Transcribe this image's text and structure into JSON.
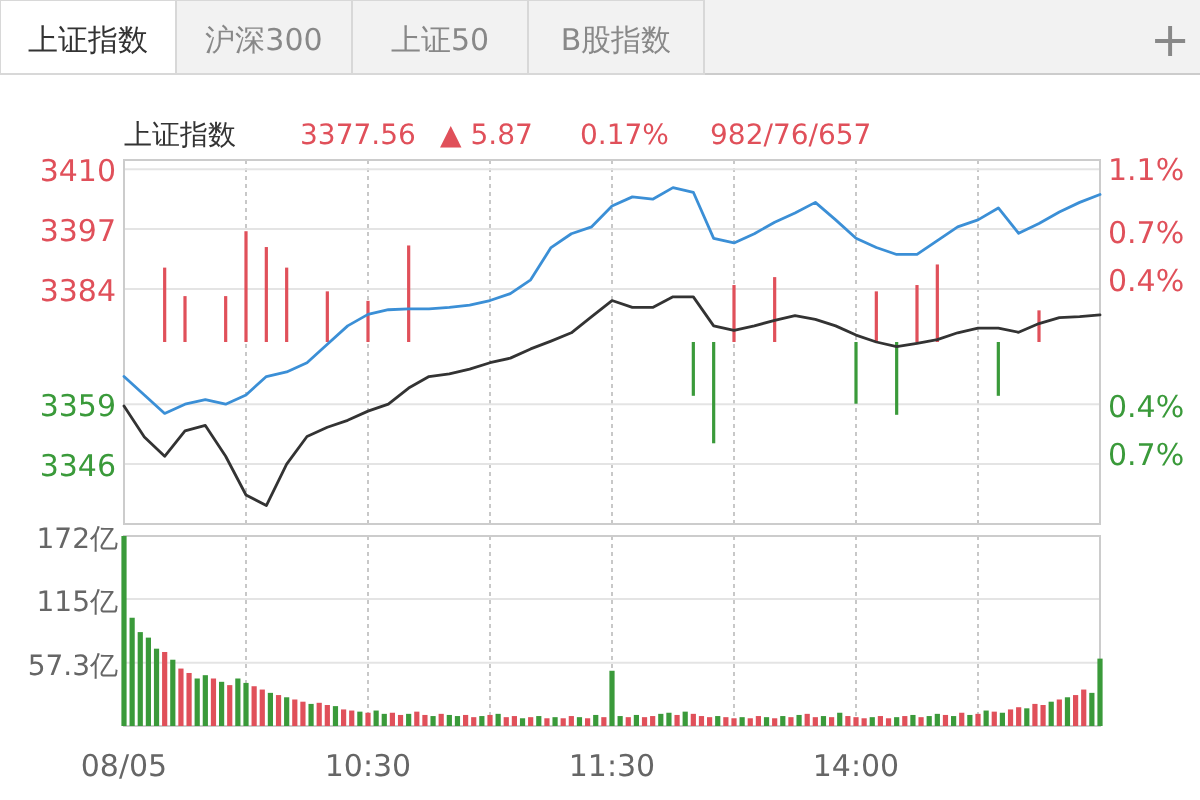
{
  "chart_data": [
    {
      "type": "other",
      "annotations": [
        "上证指数",
        "沪深300",
        "上证50",
        "B股指数",
        "+"
      ]
    },
    {
      "type": "line",
      "title": "上证指数",
      "annotations": [
        "3377.56",
        "▲ 5.87",
        "0.17%",
        "982/76/657"
      ],
      "categories": [
        null,
        null,
        null,
        null,
        null,
        null,
        null,
        null,
        null,
        null,
        null,
        null,
        null,
        null,
        null,
        null,
        null,
        null,
        null,
        null,
        null,
        null,
        null,
        null,
        null,
        null,
        null,
        null,
        null,
        null,
        null,
        null,
        null,
        null,
        null,
        null,
        null,
        null,
        null,
        null,
        null,
        null,
        null,
        null,
        null,
        null,
        null,
        null,
        null
      ],
      "ylim": [
        3333,
        3412
      ],
      "yticks": [
        3410,
        3397,
        3384,
        3359,
        3346
      ],
      "y2lim": [
        -1.15,
        1.15
      ],
      "y2ticks": [
        {
          "value": 1.1,
          "label": "1.1%"
        },
        {
          "value": 0.7,
          "label": "0.7%"
        },
        {
          "value": 0.4,
          "label": "0.4%"
        },
        {
          "value": -0.4,
          "label": "0.4%"
        },
        {
          "value": -0.7,
          "label": "0.7%"
        }
      ],
      "grid": true,
      "series": [
        {
          "type": "bar",
          "axis": "y2",
          "colors": [
            null,
            null,
            "#e0505a",
            "#e0505a",
            null,
            "#e0505a",
            "#e0505a",
            "#e0505a",
            "#e0505a",
            null,
            "#e0505a",
            null,
            "#e0505a",
            null,
            "#e0505a",
            null,
            null,
            null,
            null,
            null,
            null,
            null,
            null,
            null,
            null,
            null,
            null,
            null,
            "#3a9a3a",
            "#3a9a3a",
            "#e0505a",
            null,
            "#e0505a",
            null,
            null,
            null,
            "#3a9a3a",
            "#e0505a",
            "#3a9a3a",
            "#e0505a",
            "#e0505a",
            null,
            null,
            "#3a9a3a",
            null,
            "#e0505a",
            null,
            null,
            null
          ],
          "values": [
            null,
            null,
            0.47,
            0.29,
            null,
            0.29,
            0.7,
            0.6,
            0.47,
            null,
            0.32,
            null,
            0.26,
            null,
            0.61,
            null,
            null,
            null,
            null,
            null,
            null,
            null,
            null,
            null,
            null,
            null,
            null,
            null,
            -0.34,
            -0.64,
            0.36,
            null,
            0.41,
            null,
            null,
            null,
            -0.39,
            0.32,
            -0.46,
            0.36,
            0.49,
            null,
            null,
            -0.34,
            null,
            0.2,
            null,
            null,
            null
          ]
        },
        {
          "type": "line",
          "color": "#333333",
          "values": [
            3358.6,
            3351.9,
            3347.7,
            3353.2,
            3354.4,
            3347.7,
            3339.3,
            3337,
            3346,
            3352,
            3354,
            3355.5,
            3357.5,
            3359,
            3362.5,
            3365,
            3365.6,
            3366.6,
            3368,
            3369,
            3371,
            3372.7,
            3374.5,
            3378,
            3381.5,
            3380,
            3380,
            3382.3,
            3382.3,
            3376,
            3375,
            3376,
            3377.2,
            3378.2,
            3377.4,
            3376,
            3374,
            3372.5,
            3371.5,
            3372.2,
            3373,
            3374.5,
            3375.5,
            3375.5,
            3374.6,
            3376.5,
            3377.8,
            3378,
            3378.4
          ]
        },
        {
          "type": "line",
          "color": "#3b8fd6",
          "values": [
            3365,
            3361,
            3357,
            3359,
            3360,
            3359,
            3361,
            3365,
            3366,
            3368,
            3372,
            3376,
            3378.5,
            3379.5,
            3379.7,
            3379.7,
            3380,
            3380.5,
            3381.5,
            3383,
            3386,
            3393,
            3396,
            3397.5,
            3402,
            3404,
            3403.5,
            3406,
            3405,
            3395,
            3394,
            3396,
            3398.5,
            3400.5,
            3402.8,
            3399,
            3395,
            3393,
            3391.5,
            3391.5,
            3394.5,
            3397.5,
            3399,
            3401.6,
            3396.1,
            3398.2,
            3400.7,
            3402.8,
            3404.5
          ]
        }
      ]
    },
    {
      "type": "bar",
      "categories": [
        "08/05",
        null,
        null,
        null,
        null,
        null,
        null,
        null,
        null,
        null,
        null,
        null,
        null,
        null,
        null,
        null,
        null,
        null,
        null,
        null,
        null,
        null,
        null,
        null,
        null,
        null,
        null,
        null,
        null,
        null,
        "10:30",
        null,
        null,
        null,
        null,
        null,
        null,
        null,
        null,
        null,
        null,
        null,
        null,
        null,
        null,
        null,
        null,
        null,
        null,
        null,
        null,
        null,
        null,
        null,
        null,
        null,
        null,
        null,
        null,
        null,
        "11:30",
        null,
        null,
        null,
        null,
        null,
        null,
        null,
        null,
        null,
        null,
        null,
        null,
        null,
        null,
        null,
        null,
        null,
        null,
        null,
        null,
        null,
        null,
        null,
        null,
        null,
        null,
        null,
        null,
        null,
        "14:00",
        null,
        null,
        null,
        null,
        null,
        null,
        null,
        null,
        null,
        null,
        null,
        null,
        null,
        null,
        null,
        null,
        null,
        null,
        null,
        null,
        null,
        null,
        null,
        null,
        null,
        null,
        null,
        null,
        null,
        null
      ],
      "ylim": [
        0,
        172
      ],
      "yticks": [
        {
          "value": 57.3,
          "label": "57.3亿"
        },
        {
          "value": 115,
          "label": "115亿"
        },
        {
          "value": 172,
          "label": "172亿"
        }
      ],
      "grid": true,
      "series": [
        {
          "values": [
            172,
            98,
            85,
            80,
            70,
            67,
            60,
            52,
            48,
            43,
            46,
            43,
            40,
            37,
            43,
            39,
            36,
            33,
            30,
            28,
            26,
            24,
            22,
            20,
            21,
            19,
            18,
            15,
            14,
            13,
            12,
            14,
            11,
            12,
            10,
            11,
            13,
            10,
            9,
            11,
            10,
            9,
            10,
            8,
            9,
            10,
            11,
            8,
            9,
            7,
            8,
            9,
            7,
            8,
            7,
            9,
            8,
            7,
            10,
            8,
            50,
            9,
            8,
            10,
            8,
            9,
            11,
            12,
            10,
            13,
            11,
            9,
            8,
            9,
            8,
            7,
            8,
            7,
            9,
            8,
            7,
            9,
            8,
            10,
            11,
            8,
            9,
            8,
            12,
            9,
            8,
            7,
            8,
            9,
            7,
            8,
            9,
            10,
            8,
            9,
            11,
            10,
            9,
            12,
            10,
            11,
            14,
            13,
            12,
            15,
            17,
            16,
            20,
            19,
            22,
            24,
            26,
            28,
            33,
            30,
            61
          ],
          "colors": [
            "#3a9a3a",
            "#3a9a3a",
            "#3a9a3a",
            "#3a9a3a",
            "#3a9a3a",
            "#e0505a",
            "#3a9a3a",
            "#e0505a",
            "#e0505a",
            "#3a9a3a",
            "#3a9a3a",
            "#e0505a",
            "#3a9a3a",
            "#e0505a",
            "#3a9a3a",
            "#3a9a3a",
            "#e0505a",
            "#e0505a",
            "#3a9a3a",
            "#e0505a",
            "#3a9a3a",
            "#e0505a",
            "#e0505a",
            "#3a9a3a",
            "#e0505a",
            "#e0505a",
            "#3a9a3a",
            "#e0505a",
            "#e0505a",
            "#3a9a3a",
            "#e0505a",
            "#3a9a3a",
            "#3a9a3a",
            "#e0505a",
            "#e0505a",
            "#3a9a3a",
            "#e0505a",
            "#e0505a",
            "#3a9a3a",
            "#e0505a",
            "#3a9a3a",
            "#3a9a3a",
            "#e0505a",
            "#e0505a",
            "#3a9a3a",
            "#e0505a",
            "#3a9a3a",
            "#e0505a",
            "#e0505a",
            "#3a9a3a",
            "#e0505a",
            "#3a9a3a",
            "#e0505a",
            "#3a9a3a",
            "#e0505a",
            "#e0505a",
            "#3a9a3a",
            "#e0505a",
            "#3a9a3a",
            "#e0505a",
            "#3a9a3a",
            "#3a9a3a",
            "#e0505a",
            "#3a9a3a",
            "#e0505a",
            "#e0505a",
            "#3a9a3a",
            "#3a9a3a",
            "#e0505a",
            "#3a9a3a",
            "#e0505a",
            "#e0505a",
            "#e0505a",
            "#3a9a3a",
            "#e0505a",
            "#e0505a",
            "#3a9a3a",
            "#e0505a",
            "#e0505a",
            "#3a9a3a",
            "#e0505a",
            "#3a9a3a",
            "#e0505a",
            "#3a9a3a",
            "#e0505a",
            "#e0505a",
            "#3a9a3a",
            "#e0505a",
            "#3a9a3a",
            "#e0505a",
            "#e0505a",
            "#e0505a",
            "#3a9a3a",
            "#e0505a",
            "#e0505a",
            "#3a9a3a",
            "#e0505a",
            "#3a9a3a",
            "#e0505a",
            "#3a9a3a",
            "#3a9a3a",
            "#e0505a",
            "#3a9a3a",
            "#e0505a",
            "#3a9a3a",
            "#e0505a",
            "#3a9a3a",
            "#e0505a",
            "#3a9a3a",
            "#e0505a",
            "#e0505a",
            "#3a9a3a",
            "#e0505a",
            "#e0505a",
            "#3a9a3a",
            "#e0505a",
            "#3a9a3a",
            "#e0505a",
            "#e0505a",
            "#3a9a3a",
            "#3a9a3a"
          ]
        }
      ]
    }
  ]
}
